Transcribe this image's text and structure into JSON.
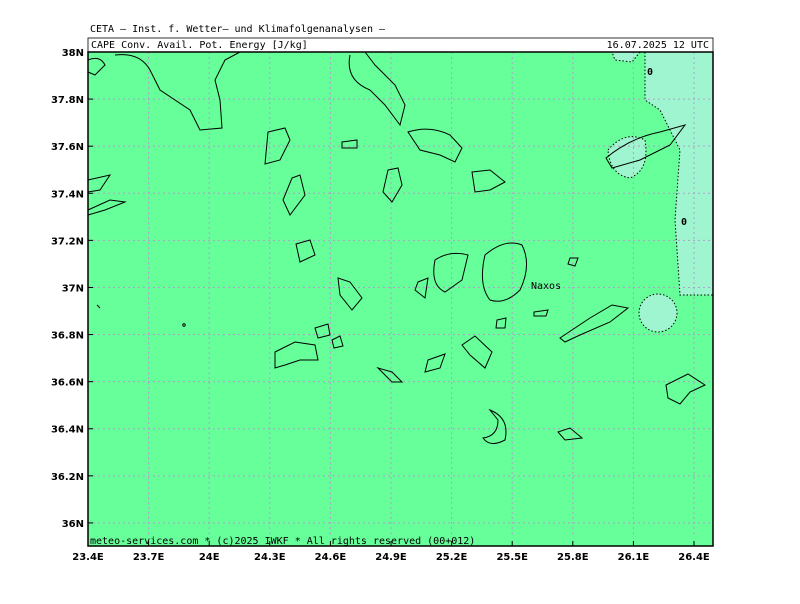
{
  "header": {
    "title": "CETA — Inst. f. Wetter— und Klimafolgenanalysen —",
    "parameter": "CAPE Conv. Avail. Pot. Energy [J/kg]",
    "valid_time": "16.07.2025 12 UTC"
  },
  "footer": "meteo-services.com * (c)2025 IWKF * All rights reserved (00+012)",
  "map": {
    "xlim": [
      23.4,
      26.494
    ],
    "ylim": [
      35.902,
      38.0
    ],
    "xticks": [
      {
        "value": 23.4,
        "label": "23.4E"
      },
      {
        "value": 23.7,
        "label": "23.7E"
      },
      {
        "value": 24.0,
        "label": "24E"
      },
      {
        "value": 24.3,
        "label": "24.3E"
      },
      {
        "value": 24.6,
        "label": "24.6E"
      },
      {
        "value": 24.9,
        "label": "24.9E"
      },
      {
        "value": 25.2,
        "label": "25.2E"
      },
      {
        "value": 25.5,
        "label": "25.5E"
      },
      {
        "value": 25.8,
        "label": "25.8E"
      },
      {
        "value": 26.1,
        "label": "26.1E"
      },
      {
        "value": 26.4,
        "label": "26.4E"
      }
    ],
    "yticks": [
      {
        "value": 38.0,
        "label": "38N"
      },
      {
        "value": 37.8,
        "label": "37.8N"
      },
      {
        "value": 37.6,
        "label": "37.6N"
      },
      {
        "value": 37.4,
        "label": "37.4N"
      },
      {
        "value": 37.2,
        "label": "37.2N"
      },
      {
        "value": 37.0,
        "label": "37N"
      },
      {
        "value": 36.8,
        "label": "36.8N"
      },
      {
        "value": 36.6,
        "label": "36.6N"
      },
      {
        "value": 36.4,
        "label": "36.4N"
      },
      {
        "value": 36.2,
        "label": "36.2N"
      },
      {
        "value": 36.0,
        "label": "36N"
      }
    ],
    "place_label": "Naxos",
    "contour_labels": [
      "0",
      "0"
    ],
    "grid": true
  }
}
